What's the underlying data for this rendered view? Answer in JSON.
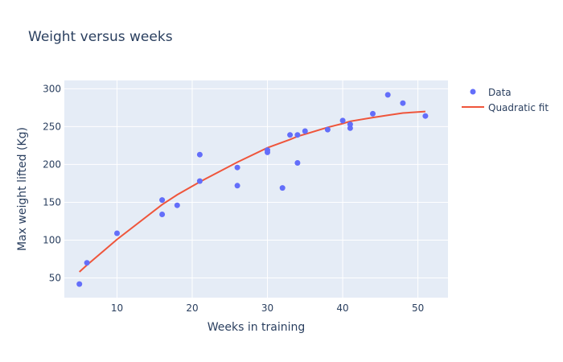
{
  "chart_data": {
    "type": "scatter",
    "title": "Weight versus weeks",
    "xlabel": "Weeks in training",
    "ylabel": "Max weight lifted (Kg)",
    "xlim": [
      3.0,
      54.0
    ],
    "ylim": [
      24.0,
      311.0
    ],
    "xticks": [
      10,
      20,
      30,
      40,
      50
    ],
    "yticks": [
      50,
      100,
      150,
      200,
      250,
      300
    ],
    "grid": true,
    "legend_position": "top-right",
    "colors": {
      "plot_bg": "#e5ecf6",
      "grid": "#ffffff",
      "text": "#2a3f5f"
    },
    "series": [
      {
        "name": "Data",
        "mode": "markers",
        "color": "#636efa",
        "x": [
          5,
          6,
          10,
          16,
          16,
          18,
          21,
          21,
          26,
          26,
          30,
          30,
          32,
          33,
          34,
          34,
          35,
          38,
          40,
          41,
          41,
          44,
          46,
          48,
          51
        ],
        "y": [
          42,
          70,
          109,
          153,
          134,
          146,
          213,
          178,
          196,
          172,
          216,
          219,
          169,
          239,
          202,
          239,
          244,
          246,
          258,
          248,
          253,
          267,
          292,
          281,
          264
        ]
      },
      {
        "name": "Quadratic fit",
        "mode": "line",
        "color": "#ef553b",
        "x": [
          5,
          6,
          10,
          16,
          18,
          21,
          26,
          30,
          33,
          34,
          35,
          38,
          40,
          41,
          44,
          46,
          48,
          51
        ],
        "y": [
          58,
          67,
          101,
          147,
          160,
          177,
          203,
          222,
          233,
          237,
          240,
          249,
          254,
          257,
          262,
          265,
          268,
          270
        ]
      }
    ]
  }
}
